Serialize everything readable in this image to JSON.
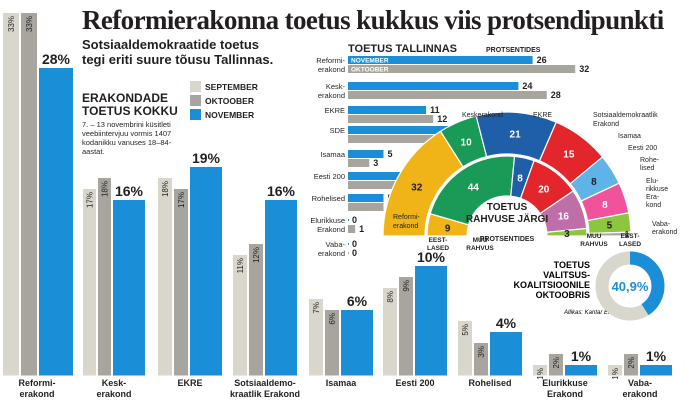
{
  "headline": "Reformierakonna toetus kukkus viis protsendipunkti",
  "subheadline": "Sotsiaaldemokraatide toetus tegi eriti suure tõusu Tallinnas.",
  "overall": {
    "title_line1": "ERAKONDADE",
    "title_line2": "TOETUS KOKKU",
    "note": "7. – 13 novembrini küsitleti veebiintervjuu vormis 1407 kodanikku vanuses 18–84-aastat."
  },
  "legend": {
    "september": "SEPTEMBER",
    "oktoober": "OKTOOBER",
    "november": "NOVEMBER"
  },
  "tallinn": {
    "title": "TOETUS TALLINNAS",
    "unit": "PROTSENTIDES"
  },
  "semicircle": {
    "title_line1": "TOETUS",
    "title_line2": "RAHVUSE JÄRGI",
    "unit": "PROTSENTIDES"
  },
  "coalition": {
    "line1": "TOETUS",
    "line2": "VALITSUS-",
    "line3": "KOALITSIOONILE",
    "line4": "OKTOOBRIS",
    "value_label": "40,9%",
    "value": 40.9
  },
  "source": "Allikas: Kantar Emor",
  "colors": {
    "september": "#d9d6cc",
    "oktoober": "#a7a59e",
    "november": "#1a8fd8",
    "text": "#231f20"
  },
  "chart_data": [
    {
      "type": "bar",
      "title": "ERAKONDADE TOETUS KOKKU",
      "categories": [
        "Reformi-\nerakond",
        "Kesk-\nerakond",
        "EKRE",
        "Sotsiaaldemo-\nkraatlik Erakond",
        "Isamaa",
        "Eesti 200",
        "Rohelised",
        "Elurikkuse\nErakond",
        "Vaba-\nerakond"
      ],
      "series": [
        {
          "name": "SEPTEMBER",
          "values": [
            33,
            17,
            18,
            11,
            7,
            8,
            5,
            1,
            1
          ],
          "labels": [
            "33%",
            "17%",
            "18%",
            "11%",
            "7%",
            "8%",
            "5%",
            "1%",
            "1%"
          ]
        },
        {
          "name": "OKTOOBER",
          "values": [
            33,
            18,
            17,
            12,
            6,
            9,
            3,
            2,
            2
          ],
          "labels": [
            "33%",
            "18%",
            "17%",
            "12%",
            "6%",
            "9%",
            "3%",
            "2%",
            "2%"
          ]
        },
        {
          "name": "NOVEMBER",
          "values": [
            28,
            16,
            19,
            16,
            6,
            10,
            4,
            1,
            1
          ],
          "labels": [
            "28%",
            "16%",
            "19%",
            "16%",
            "6%",
            "10%",
            "4%",
            "1%",
            "1%"
          ]
        }
      ],
      "ylim": [
        0,
        36
      ]
    },
    {
      "type": "bar",
      "orientation": "horizontal",
      "title": "TOETUS TALLINNAS",
      "unit": "PROTSENTIDES",
      "categories": [
        "Reformi-\nerakond",
        "Kesk-\nerakond",
        "EKRE",
        "SDE",
        "Isamaa",
        "Eesti 200",
        "Rohelised",
        "Elurikkuse\nErakond",
        "Vaba-\nerakond"
      ],
      "series": [
        {
          "name": "NOVEMBER",
          "values": [
            26,
            24,
            11,
            20,
            5,
            9,
            5,
            0,
            0
          ]
        },
        {
          "name": "OKTOOBER",
          "values": [
            32,
            28,
            12,
            12,
            3,
            8,
            5,
            1,
            0
          ]
        }
      ]
    },
    {
      "type": "pie",
      "title": "TOETUS RAHVUSE JÄRGI",
      "unit": "PROTSENTIDES",
      "rings": [
        {
          "name": "EESTLASED",
          "segments": [
            {
              "label": "Reformi-\nerakond",
              "value": 32,
              "color": "#f1b418"
            },
            {
              "label": "Keskerakond",
              "value": 10,
              "color": "#199a56"
            },
            {
              "label": "EKRE",
              "value": 21,
              "color": "#1f5ea8"
            },
            {
              "label": "Sotsiaaldemokraatlik Erakond",
              "value": 15,
              "color": "#e2262c"
            },
            {
              "label": "Isamaa",
              "value": 8,
              "color": "#5fb3e6"
            },
            {
              "label": "Eesti 200",
              "value": 8,
              "color": "#f0529c"
            },
            {
              "label": "Rohelised",
              "value": 5,
              "color": "#8cc63f"
            },
            {
              "label": "Elurikkuse Erakond",
              "value": 1,
              "color": "#a7a59e"
            },
            {
              "label": "Vabaerakond",
              "value": 0,
              "color": "#d9d6cc"
            }
          ]
        },
        {
          "name": "MUU RAHVUS",
          "segments": [
            {
              "label": "Reformierakond",
              "value": 9,
              "color": "#f1b418"
            },
            {
              "label": "Keskerakond",
              "value": 44,
              "color": "#199a56"
            },
            {
              "label": "EKRE",
              "value": 8,
              "color": "#1f5ea8"
            },
            {
              "label": "Sotsiaaldemokraatlik Erakond",
              "value": 20,
              "color": "#e2262c"
            },
            {
              "label": "Eesti 200",
              "value": 16,
              "color": "#c06ea8"
            },
            {
              "label": "Rohelised",
              "value": 3,
              "color": "#8cc63f"
            }
          ]
        }
      ]
    },
    {
      "type": "pie",
      "title": "TOETUS VALITSUSKOALITSIOONILE OKTOOBRIS",
      "values": [
        40.9,
        59.1
      ],
      "labels": [
        "40,9%",
        ""
      ]
    }
  ]
}
